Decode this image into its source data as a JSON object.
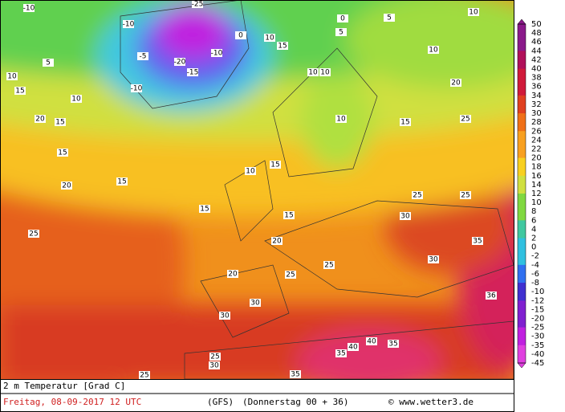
{
  "map": {
    "labels": [
      "-10",
      "-25",
      "-10",
      "-5",
      "-20",
      "-15",
      "-10",
      "-10",
      "5",
      "10",
      "15",
      "10",
      "20",
      "15",
      "15",
      "20",
      "15",
      "25",
      "15",
      "10",
      "15",
      "15",
      "20",
      "25",
      "25",
      "20",
      "30",
      "30",
      "35",
      "40",
      "40",
      "35",
      "25",
      "25",
      "30",
      "35",
      "25",
      "30",
      "30",
      "35",
      "36",
      "25",
      "20",
      "25",
      "15",
      "10",
      "10",
      "10",
      "5",
      "10",
      "0",
      "5",
      "0",
      "10",
      "15",
      "10"
    ]
  },
  "scale": {
    "labels": [
      50,
      48,
      46,
      44,
      42,
      40,
      38,
      36,
      34,
      32,
      30,
      28,
      26,
      24,
      22,
      20,
      18,
      16,
      14,
      12,
      10,
      8,
      6,
      4,
      2,
      0,
      -2,
      -4,
      -6,
      -8,
      -10,
      -12,
      -15,
      -20,
      -25,
      -30,
      -35,
      -40,
      -45
    ]
  },
  "footer": {
    "variable": "2 m Temperatur [Grad C]",
    "date": "Freitag, 08-09-2017   12 UTC",
    "model": "(GFS)",
    "run": "(Donnerstag 00 + 36)",
    "copyright": "© www.wetter3.de"
  }
}
